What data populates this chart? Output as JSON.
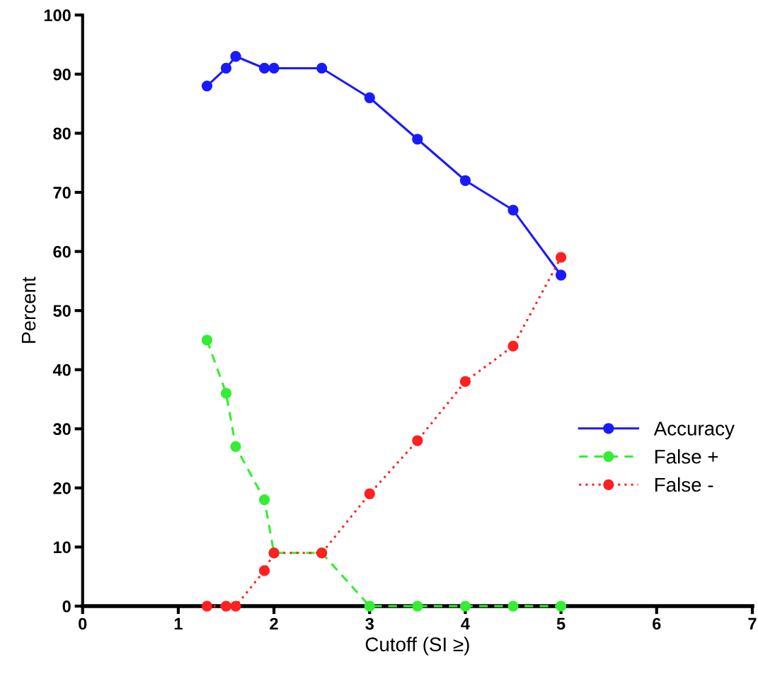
{
  "chart_data": {
    "type": "line",
    "xlabel": "Cutoff (SI ≥)",
    "ylabel": "Percent",
    "x": [
      1.3,
      1.5,
      1.6,
      1.9,
      2.0,
      2.5,
      3,
      3.5,
      4,
      4.5,
      5
    ],
    "series": [
      {
        "name": "Accuracy",
        "color": "#1a1aff",
        "line_style": "solid",
        "values": [
          88,
          91,
          93,
          91,
          91,
          91,
          86,
          79,
          72,
          67,
          56
        ]
      },
      {
        "name": "False +",
        "color": "#33ee33",
        "line_style": "dashed",
        "values": [
          45,
          36,
          27,
          18,
          9,
          9,
          0,
          0,
          0,
          0,
          0
        ]
      },
      {
        "name": "False -",
        "color": "#ff2020",
        "line_style": "dotted",
        "values": [
          0,
          0,
          0,
          6,
          9,
          9,
          19,
          28,
          38,
          44,
          59
        ]
      }
    ],
    "xlim": [
      0,
      7
    ],
    "xticks": [
      0,
      1,
      2,
      3,
      4,
      5,
      6,
      7
    ],
    "ylim": [
      0,
      100
    ],
    "yticks": [
      0,
      10,
      20,
      30,
      40,
      50,
      60,
      70,
      80,
      90,
      100
    ],
    "marker": "circle",
    "grid": false,
    "legend": "right"
  }
}
